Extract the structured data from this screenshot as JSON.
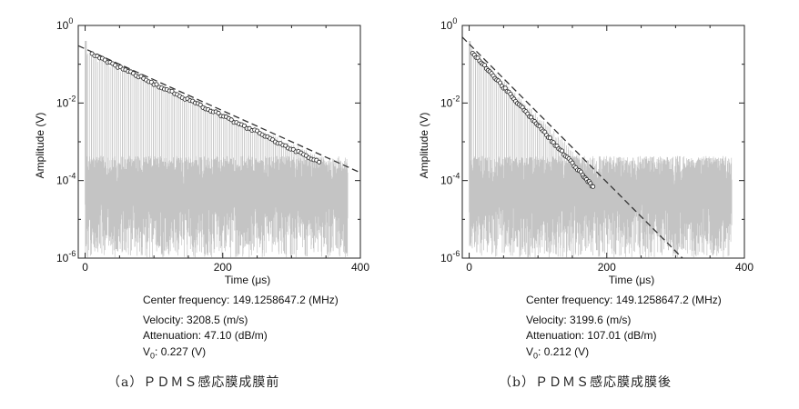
{
  "chart_data": [
    {
      "type": "line",
      "xlabel": "Time (μs)",
      "ylabel": "Amplitude (V)",
      "xlim": [
        -10,
        400
      ],
      "ylim": [
        1e-06,
        1
      ],
      "yscale": "log",
      "x_ticks": [
        "0",
        "200",
        "400"
      ],
      "y_ticks": [
        {
          "base": "10",
          "exp": "0"
        },
        {
          "base": "10",
          "exp": "-2"
        },
        {
          "base": "10",
          "exp": "-4"
        },
        {
          "base": "10",
          "exp": "-6"
        }
      ],
      "grid": false,
      "series": [
        {
          "style": "gray raw echo waveform",
          "color": "#c4c4c4",
          "x_range": [
            0,
            382
          ],
          "noise_floor": 0.0001
        },
        {
          "style": "circle markers (peak amplitudes)",
          "color": "#222222",
          "x": [
            10,
            40,
            70,
            100,
            130,
            160,
            190,
            220,
            250,
            280,
            310,
            340
          ],
          "y": [
            0.18,
            0.099,
            0.058,
            0.031,
            0.018,
            0.0098,
            0.0056,
            0.0031,
            0.0018,
            0.00096,
            0.00054,
            0.0003
          ]
        },
        {
          "style": "dashed fit",
          "color": "#333333",
          "x": [
            -10,
            400
          ],
          "y": [
            0.3,
            0.00016
          ]
        }
      ],
      "info": {
        "center_frequency_label": "Center frequency:",
        "center_frequency_value": "149.1258647.2 (MHz)",
        "velocity_label": "Velocity:",
        "velocity_value": "3208.5 (m/s)",
        "attenuation_label": "Attenuation:",
        "attenuation_value": "47.10 (dB/m)",
        "v0_label_main": "V",
        "v0_label_sub": "0",
        "v0_value": "0.227 (V)"
      },
      "caption": "（a）ＰＤＭＳ感応膜成膜前"
    },
    {
      "type": "line",
      "xlabel": "Time (μs)",
      "ylabel": "Amplitude (V)",
      "xlim": [
        -10,
        400
      ],
      "ylim": [
        1e-06,
        1
      ],
      "yscale": "log",
      "x_ticks": [
        "0",
        "200",
        "400"
      ],
      "y_ticks": [
        {
          "base": "10",
          "exp": "0"
        },
        {
          "base": "10",
          "exp": "-2"
        },
        {
          "base": "10",
          "exp": "-4"
        },
        {
          "base": "10",
          "exp": "-6"
        }
      ],
      "grid": false,
      "series": [
        {
          "style": "gray raw echo waveform",
          "color": "#c4c4c4",
          "x_range": [
            0,
            382
          ],
          "noise_floor": 0.0001
        },
        {
          "style": "circle markers (peak amplitudes)",
          "color": "#222222",
          "x": [
            5,
            25,
            45,
            65,
            85,
            105,
            125,
            145,
            165,
            180
          ],
          "y": [
            0.2,
            0.079,
            0.032,
            0.013,
            0.0052,
            0.0021,
            0.00085,
            0.00035,
            0.00014,
            7e-05
          ]
        },
        {
          "style": "dashed fit",
          "color": "#333333",
          "x": [
            -10,
            310
          ],
          "y": [
            0.5,
            1e-06
          ]
        }
      ],
      "info": {
        "center_frequency_label": "Center frequency:",
        "center_frequency_value": "149.1258647.2 (MHz)",
        "velocity_label": "Velocity:",
        "velocity_value": "3199.6 (m/s)",
        "attenuation_label": "Attenuation:",
        "attenuation_value": "107.01 (dB/m)",
        "v0_label_main": "V",
        "v0_label_sub": "0",
        "v0_value": "0.212 (V)"
      },
      "caption": "（b）ＰＤＭＳ感応膜成膜後"
    }
  ]
}
